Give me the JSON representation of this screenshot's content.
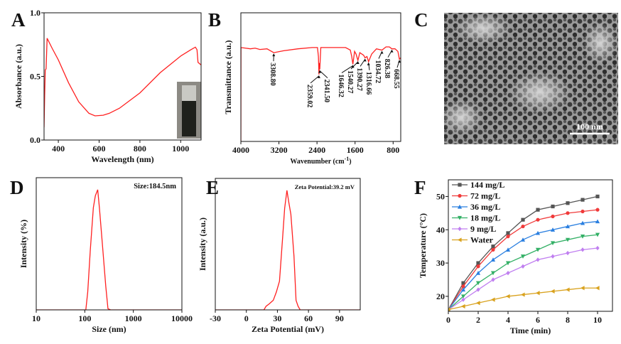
{
  "image_panel": {
    "label": "C",
    "scale_bar": "100 nm"
  },
  "chart_data": [
    {
      "panel": "A",
      "type": "line",
      "xlabel": "Wavelength (nm)",
      "ylabel": "Absorbance (a.u.)",
      "xlim": [
        330,
        1100
      ],
      "ylim": [
        0,
        1
      ],
      "xticks": [
        400,
        600,
        800,
        1000
      ],
      "yticks": [
        0.0,
        0.5,
        1.0
      ],
      "ytick_labels": [
        "0.0",
        "0.5",
        "1.0"
      ],
      "color": "#ff2020",
      "x": [
        330,
        333,
        336,
        340,
        345,
        370,
        400,
        450,
        500,
        550,
        580,
        620,
        650,
        700,
        800,
        900,
        1000,
        1050,
        1072,
        1080,
        1085,
        1100
      ],
      "y": [
        0.1,
        0.35,
        0.55,
        0.56,
        0.8,
        0.72,
        0.63,
        0.45,
        0.3,
        0.21,
        0.19,
        0.195,
        0.21,
        0.25,
        0.37,
        0.53,
        0.66,
        0.71,
        0.73,
        0.71,
        0.61,
        0.59
      ],
      "inset": "photo of dark dispersion in cuvette"
    },
    {
      "panel": "B",
      "type": "line",
      "xlabel": "Wavenumber (cm",
      "xlabel_sup": "-1",
      "xlabel_end": ")",
      "ylabel": "Transmittance (a.u.)",
      "xlim": [
        4000,
        640
      ],
      "ylim": [
        0,
        1
      ],
      "xticks": [
        4000,
        3200,
        2400,
        1600,
        800
      ],
      "color": "#ff2020",
      "x": [
        4000,
        3998,
        3900,
        3800,
        3700,
        3600,
        3450,
        3308.8,
        3100,
        2800,
        2500,
        2390,
        2370,
        2359.02,
        2350,
        2341.5,
        2320,
        2000,
        1800,
        1700,
        1670,
        1646.32,
        1610,
        1580,
        1540.27,
        1500,
        1420,
        1390.27,
        1350,
        1316.66,
        1250,
        1150,
        1034.72,
        950,
        880,
        826.38,
        760,
        700,
        668.55,
        640
      ],
      "y": [
        0.0,
        0.73,
        0.725,
        0.72,
        0.725,
        0.715,
        0.72,
        0.69,
        0.705,
        0.72,
        0.73,
        0.73,
        0.66,
        0.52,
        0.61,
        0.56,
        0.73,
        0.73,
        0.73,
        0.71,
        0.66,
        0.6,
        0.7,
        0.68,
        0.63,
        0.69,
        0.67,
        0.65,
        0.66,
        0.62,
        0.68,
        0.72,
        0.71,
        0.735,
        0.735,
        0.72,
        0.72,
        0.7,
        0.64,
        0.65
      ],
      "annotations": [
        {
          "x": 3308.8,
          "label": "3308.80"
        },
        {
          "x": 2359.02,
          "label": "2359.02"
        },
        {
          "x": 2341.5,
          "label": "2341.50"
        },
        {
          "x": 1646.32,
          "label": "1646.32"
        },
        {
          "x": 1540.27,
          "label": "1540.27"
        },
        {
          "x": 1390.27,
          "label": "1390.27"
        },
        {
          "x": 1316.66,
          "label": "1316.66"
        },
        {
          "x": 1034.72,
          "label": "1034.72"
        },
        {
          "x": 826.38,
          "label": "826.38"
        },
        {
          "x": 668.55,
          "label": "668.55"
        }
      ]
    },
    {
      "panel": "D",
      "type": "line",
      "xlabel": "Size (nm)",
      "ylabel": "Intensity (%)",
      "xscale": "log",
      "xlim": [
        10,
        10000
      ],
      "ylim": [
        0,
        1.1
      ],
      "xticks": [
        10,
        100,
        1000,
        10000
      ],
      "annotation": "Size:184.5nm",
      "color": "#ff2020",
      "x": [
        10,
        105,
        115,
        130,
        150,
        165,
        184.5,
        200,
        230,
        270,
        300,
        340,
        10000
      ],
      "y": [
        0,
        0,
        0.15,
        0.5,
        0.85,
        0.95,
        1.0,
        0.85,
        0.55,
        0.2,
        0.01,
        0,
        0
      ]
    },
    {
      "panel": "E",
      "type": "line",
      "xlabel": "Zeta Potential (mV)",
      "ylabel": "Intensity (a.u.)",
      "xlim": [
        -30,
        110
      ],
      "ylim": [
        0,
        1.1
      ],
      "xticks": [
        -30,
        0,
        30,
        60,
        90
      ],
      "annotation": "Zeta Potential:39.2 mV",
      "color": "#ff2020",
      "x": [
        -30,
        17,
        19,
        22,
        26,
        29,
        32,
        35,
        37,
        39.2,
        41,
        43,
        46,
        48,
        50,
        52,
        110
      ],
      "y": [
        0,
        0,
        0.03,
        0.05,
        0.08,
        0.15,
        0.24,
        0.6,
        0.85,
        1.0,
        0.9,
        0.8,
        0.45,
        0.08,
        0.03,
        0,
        0
      ]
    },
    {
      "panel": "F",
      "type": "line",
      "xlabel": "Time (min)",
      "ylabel": "Temperature (°C)",
      "xlim": [
        0,
        11
      ],
      "ylim": [
        15.5,
        55
      ],
      "xticks": [
        0,
        2,
        4,
        6,
        8,
        10
      ],
      "yticks": [
        20,
        30,
        40,
        50
      ],
      "legend": "top-left",
      "x": [
        0,
        1,
        2,
        3,
        4,
        5,
        6,
        7,
        8,
        9,
        10
      ],
      "series": [
        {
          "name": "144 mg/L",
          "color": "#555555",
          "marker": "square",
          "values": [
            16,
            24,
            30,
            35,
            39,
            43,
            46,
            47,
            48,
            49,
            50
          ]
        },
        {
          "name": "72 mg/L",
          "color": "#f03a3a",
          "marker": "circle",
          "values": [
            16,
            23,
            29,
            34,
            38,
            41,
            43,
            44,
            45,
            45.5,
            46
          ]
        },
        {
          "name": "36 mg/L",
          "color": "#2a7fe0",
          "marker": "triangle-up",
          "values": [
            16,
            22,
            27,
            31,
            34,
            37,
            39,
            40,
            41,
            42,
            42.5
          ]
        },
        {
          "name": "18 mg/L",
          "color": "#33b066",
          "marker": "triangle-down",
          "values": [
            16,
            20,
            24,
            27,
            30,
            32,
            34,
            36,
            37,
            38,
            38.5
          ]
        },
        {
          "name": "9 mg/L",
          "color": "#c07ff0",
          "marker": "diamond",
          "values": [
            16,
            19,
            22,
            25,
            27,
            29,
            31,
            32,
            33,
            34,
            34.5
          ]
        },
        {
          "name": "Water",
          "color": "#d9a21e",
          "marker": "triangle-left",
          "values": [
            16,
            17,
            18,
            19,
            20,
            20.5,
            21,
            21.5,
            22,
            22.5,
            22.5
          ]
        }
      ]
    }
  ]
}
